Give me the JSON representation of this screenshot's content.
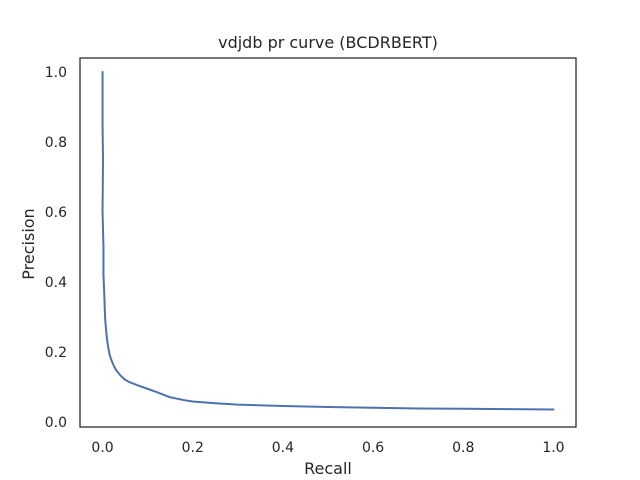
{
  "chart_data": {
    "type": "line",
    "title": "vdjdb pr curve (BCDRBERT)",
    "xlabel": "Recall",
    "ylabel": "Precision",
    "xlim": [
      -0.05,
      1.05
    ],
    "ylim": [
      -0.015,
      1.04
    ],
    "grid": false,
    "line_color": "#4c72b0",
    "x_ticks": [
      "0.0",
      "0.2",
      "0.4",
      "0.6",
      "0.8",
      "1.0"
    ],
    "x_tick_values": [
      0.0,
      0.2,
      0.4,
      0.6,
      0.8,
      1.0
    ],
    "y_ticks": [
      "0.0",
      "0.2",
      "0.4",
      "0.6",
      "0.8",
      "1.0"
    ],
    "y_tick_values": [
      0.0,
      0.2,
      0.4,
      0.6,
      0.8,
      1.0
    ],
    "series": [
      {
        "x": [
          0.0,
          0.0,
          0.001,
          0.0,
          0.002,
          0.002,
          0.004,
          0.005,
          0.006,
          0.008,
          0.01,
          0.013,
          0.016,
          0.02,
          0.025,
          0.03,
          0.04,
          0.05,
          0.06,
          0.08,
          0.1,
          0.12,
          0.15,
          0.18,
          0.2,
          0.25,
          0.3,
          0.4,
          0.5,
          0.6,
          0.7,
          0.8,
          0.9,
          1.0
        ],
        "y": [
          1.0,
          0.85,
          0.75,
          0.6,
          0.5,
          0.42,
          0.36,
          0.32,
          0.29,
          0.26,
          0.235,
          0.21,
          0.19,
          0.175,
          0.16,
          0.148,
          0.132,
          0.12,
          0.113,
          0.103,
          0.094,
          0.085,
          0.07,
          0.062,
          0.058,
          0.053,
          0.049,
          0.045,
          0.042,
          0.04,
          0.038,
          0.037,
          0.036,
          0.035
        ]
      }
    ]
  }
}
